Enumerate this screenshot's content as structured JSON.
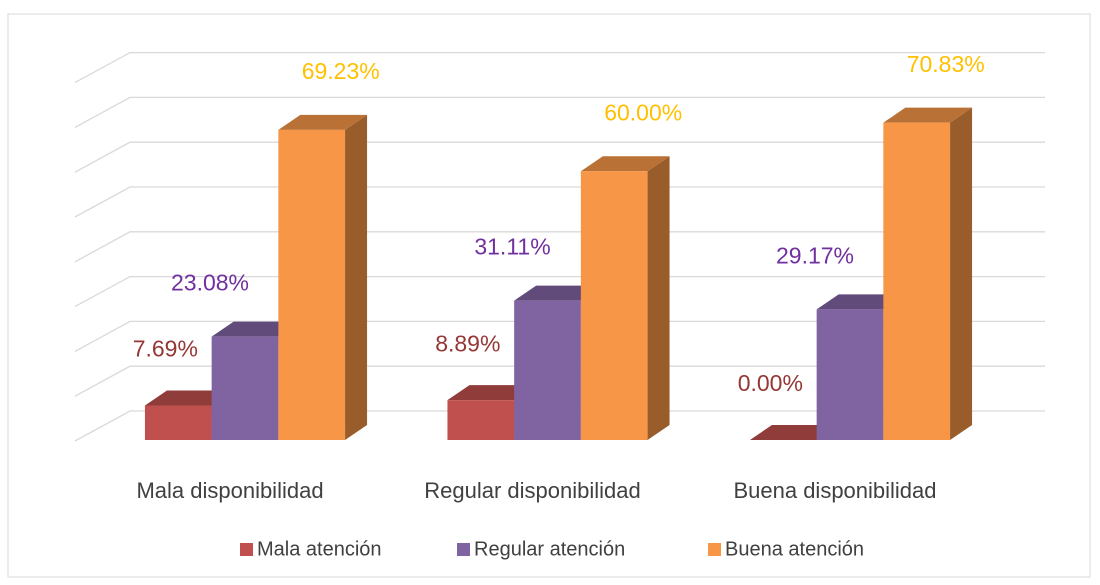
{
  "chart_data": {
    "type": "bar3d",
    "categories": [
      "Mala disponibilidad",
      "Regular disponibilidad",
      "Buena disponibilidad"
    ],
    "series": [
      {
        "name": "Mala atención",
        "color": "#c0504d",
        "label_color": "#953735",
        "values": [
          7.69,
          8.89,
          0.0
        ],
        "value_labels": [
          "7.69%",
          "8.89%",
          "0.00%"
        ]
      },
      {
        "name": "Regular atención",
        "color": "#8064a2",
        "label_color": "#7030a0",
        "values": [
          23.08,
          31.11,
          29.17
        ],
        "value_labels": [
          "23.08%",
          "31.11%",
          "29.17%"
        ]
      },
      {
        "name": "Buena atención",
        "color": "#f79646",
        "label_color": "#ffc000",
        "values": [
          69.23,
          60.0,
          70.83
        ],
        "value_labels": [
          "69.23%",
          "60.00%",
          "70.83%"
        ]
      }
    ],
    "ylim": [
      0,
      80
    ],
    "yticks": [
      0,
      10,
      20,
      30,
      40,
      50,
      60,
      70,
      80
    ],
    "grid": true,
    "legend": "bottom"
  }
}
